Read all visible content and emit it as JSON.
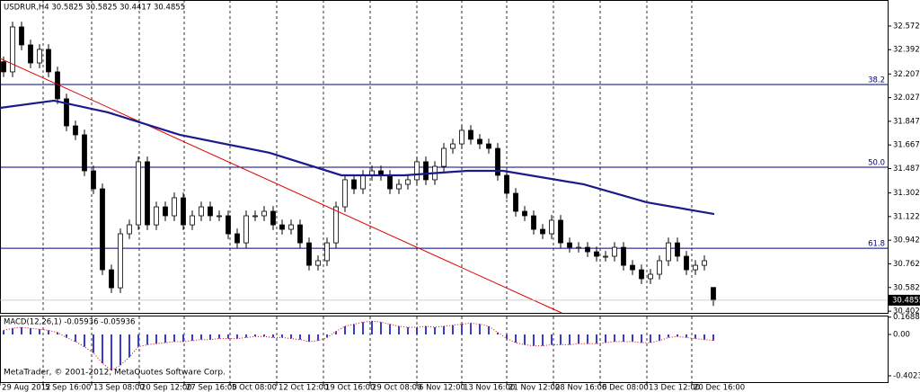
{
  "chart_data": [
    {
      "type": "candlestick",
      "title": "USDRUR,H4 30.5825 30.5825 30.4417 30.4855",
      "watermark": "MetaTrader, © 2001-2012, MetaQuotes Software Corp.",
      "up_color": "#ffffff",
      "down_color": "#000000",
      "edge_color": "#000000",
      "open": [
        32.3,
        32.223,
        32.565,
        32.428,
        32.291,
        32.394,
        32.223,
        32.018,
        31.812,
        31.744,
        31.47,
        31.333,
        30.717,
        30.58,
        30.991,
        31.059,
        31.539,
        31.059,
        31.196,
        31.128,
        31.265,
        31.059,
        31.128,
        31.196,
        31.128,
        31.128,
        30.991,
        30.922,
        31.128,
        31.128,
        31.162,
        31.059,
        31.025,
        31.059,
        30.922,
        30.751,
        30.786,
        30.922,
        31.196,
        31.402,
        31.333,
        31.436,
        31.47,
        31.436,
        31.333,
        31.367,
        31.402,
        31.539,
        31.402,
        31.504,
        31.641,
        31.675,
        31.778,
        31.71,
        31.675,
        31.641,
        31.436,
        31.299,
        31.162,
        31.128,
        31.025,
        30.991,
        31.094,
        30.922,
        30.888,
        30.888,
        30.854,
        30.82,
        30.82,
        30.888,
        30.751,
        30.717,
        30.649,
        30.683,
        30.786,
        30.922,
        30.82,
        30.717,
        30.751,
        30.5825
      ],
      "high": [
        32.34,
        32.605,
        32.605,
        32.468,
        32.434,
        32.434,
        32.263,
        32.058,
        31.852,
        31.784,
        31.51,
        31.373,
        30.757,
        31.031,
        31.099,
        31.579,
        31.579,
        31.236,
        31.236,
        31.305,
        31.305,
        31.168,
        31.236,
        31.236,
        31.168,
        31.168,
        31.031,
        31.168,
        31.168,
        31.202,
        31.202,
        31.099,
        31.099,
        31.099,
        30.962,
        30.826,
        30.962,
        31.236,
        31.442,
        31.442,
        31.476,
        31.51,
        31.51,
        31.476,
        31.407,
        31.442,
        31.579,
        31.579,
        31.544,
        31.681,
        31.715,
        31.818,
        31.818,
        31.75,
        31.715,
        31.681,
        31.476,
        31.339,
        31.202,
        31.168,
        31.065,
        31.134,
        31.134,
        30.962,
        30.928,
        30.928,
        30.894,
        30.86,
        30.928,
        30.928,
        30.791,
        30.757,
        30.723,
        30.826,
        30.962,
        30.962,
        30.86,
        30.791,
        30.826,
        30.5825
      ],
      "low": [
        32.183,
        32.183,
        32.388,
        32.251,
        32.251,
        32.183,
        31.978,
        31.772,
        31.704,
        31.43,
        31.293,
        30.677,
        30.54,
        30.54,
        30.951,
        31.019,
        31.019,
        31.019,
        31.088,
        31.088,
        31.019,
        31.019,
        31.088,
        31.088,
        31.088,
        30.951,
        30.882,
        30.882,
        31.088,
        31.088,
        31.019,
        30.985,
        30.985,
        30.882,
        30.711,
        30.711,
        30.746,
        30.882,
        31.156,
        31.293,
        31.293,
        31.396,
        31.396,
        31.293,
        31.293,
        31.327,
        31.362,
        31.362,
        31.362,
        31.464,
        31.601,
        31.635,
        31.67,
        31.635,
        31.601,
        31.396,
        31.259,
        31.122,
        31.088,
        30.985,
        30.951,
        30.951,
        30.882,
        30.848,
        30.848,
        30.814,
        30.78,
        30.78,
        30.78,
        30.711,
        30.677,
        30.609,
        30.609,
        30.643,
        30.746,
        30.78,
        30.677,
        30.677,
        30.711,
        30.4417
      ],
      "close": [
        32.223,
        32.565,
        32.428,
        32.291,
        32.394,
        32.223,
        32.018,
        31.812,
        31.744,
        31.47,
        31.333,
        30.717,
        30.58,
        30.991,
        31.059,
        31.539,
        31.059,
        31.196,
        31.128,
        31.265,
        31.059,
        31.128,
        31.196,
        31.128,
        31.128,
        30.991,
        30.922,
        31.128,
        31.128,
        31.162,
        31.059,
        31.025,
        31.059,
        30.922,
        30.751,
        30.786,
        30.922,
        31.196,
        31.402,
        31.333,
        31.436,
        31.47,
        31.436,
        31.333,
        31.367,
        31.402,
        31.539,
        31.402,
        31.504,
        31.641,
        31.675,
        31.778,
        31.71,
        31.675,
        31.641,
        31.436,
        31.299,
        31.162,
        31.128,
        31.025,
        30.991,
        31.094,
        30.922,
        30.888,
        30.888,
        30.854,
        30.82,
        30.82,
        30.888,
        30.751,
        30.717,
        30.649,
        30.683,
        30.786,
        30.922,
        30.82,
        30.717,
        30.751,
        30.786,
        30.4855
      ],
      "ma": {
        "color": "#1a1a8c",
        "x": [
          -0.4,
          5.6,
          11.6,
          19.6,
          29.6,
          37.6,
          44.6,
          51.6,
          55.6,
          64.6,
          71.6,
          79.1
        ],
        "values": [
          31.949,
          32.004,
          31.915,
          31.744,
          31.607,
          31.436,
          31.436,
          31.47,
          31.47,
          31.367,
          31.23,
          31.141
        ]
      },
      "trendline": {
        "color": "#e00000",
        "x": [
          -0.4,
          62.1
        ],
        "values": [
          32.326,
          30.389
        ]
      },
      "fib_color": "#000080",
      "fib_levels": [
        {
          "price": 32.127,
          "label": "38.2"
        },
        {
          "price": 31.497,
          "label": "50.0"
        },
        {
          "price": 30.881,
          "label": "61.8"
        }
      ],
      "xlim": [
        -0.4,
        98.4
      ],
      "ylim": [
        30.389,
        32.77
      ],
      "yticks": [
        {
          "value": 32.572,
          "label": "32.5720"
        },
        {
          "value": 32.392,
          "label": "32.3920"
        },
        {
          "value": 32.207,
          "label": "32.2070"
        },
        {
          "value": 32.027,
          "label": "32.0270"
        },
        {
          "value": 31.847,
          "label": "31.8470"
        },
        {
          "value": 31.667,
          "label": "31.6670"
        },
        {
          "value": 31.487,
          "label": "31.4870"
        },
        {
          "value": 31.302,
          "label": "31.3020"
        },
        {
          "value": 31.122,
          "label": "31.1220"
        },
        {
          "value": 30.942,
          "label": "30.9420"
        },
        {
          "value": 30.762,
          "label": "30.7620"
        },
        {
          "value": 30.582,
          "label": "30.5820"
        },
        {
          "value": 30.402,
          "label": "30.4020"
        }
      ],
      "xticks": [
        {
          "value": -0.4,
          "label": "29 Aug 2012"
        },
        {
          "value": 4.4,
          "label": "5 Sep 16:00"
        },
        {
          "value": 9.8,
          "label": "13 Sep 08:00"
        },
        {
          "value": 15.1,
          "label": "20 Sep 12:00"
        },
        {
          "value": 20.1,
          "label": "27 Sep 16:00"
        },
        {
          "value": 25.2,
          "label": "5 Oct 08:00"
        },
        {
          "value": 30.4,
          "label": "12 Oct 12:00"
        },
        {
          "value": 35.6,
          "label": "19 Oct 16:00"
        },
        {
          "value": 40.8,
          "label": "29 Oct 08:00"
        },
        {
          "value": 46,
          "label": "6 Nov 12:00"
        },
        {
          "value": 51,
          "label": "13 Nov 16:00"
        },
        {
          "value": 56,
          "label": "21 Nov 12:00"
        },
        {
          "value": 61.2,
          "label": "28 Nov 16:00"
        },
        {
          "value": 66.4,
          "label": "6 Dec 08:00"
        },
        {
          "value": 71.6,
          "label": "13 Dec 12:00"
        },
        {
          "value": 76.6,
          "label": "20 Dec 16:00"
        }
      ],
      "grid": true
    },
    {
      "type": "macd",
      "title": "MACD(12,26,1) -0.05936 -0.05936",
      "color": "#3c3ccc",
      "signal_color": "#cc0000",
      "values": [
        0.04,
        0.06,
        0.07,
        0.06,
        0.05,
        0.04,
        0.02,
        -0.03,
        -0.07,
        -0.12,
        -0.18,
        -0.28,
        -0.35,
        -0.3,
        -0.22,
        -0.12,
        -0.1,
        -0.09,
        -0.08,
        -0.07,
        -0.07,
        -0.06,
        -0.05,
        -0.05,
        -0.04,
        -0.04,
        -0.04,
        -0.03,
        -0.02,
        -0.02,
        -0.03,
        -0.03,
        -0.04,
        -0.05,
        -0.07,
        -0.06,
        -0.03,
        0.03,
        0.08,
        0.1,
        0.12,
        0.13,
        0.12,
        0.1,
        0.08,
        0.07,
        0.07,
        0.08,
        0.07,
        0.08,
        0.09,
        0.1,
        0.11,
        0.1,
        0.08,
        0.02,
        -0.04,
        -0.08,
        -0.1,
        -0.11,
        -0.11,
        -0.1,
        -0.1,
        -0.1,
        -0.09,
        -0.09,
        -0.09,
        -0.08,
        -0.07,
        -0.07,
        -0.07,
        -0.08,
        -0.08,
        -0.06,
        -0.03,
        -0.02,
        -0.03,
        -0.04,
        -0.05,
        -0.05936
      ],
      "ylim": [
        -0.455,
        0.175
      ],
      "yticks": [
        0.16887,
        {
          "value": 0,
          "label": "0.00"
        },
        -0.40231
      ]
    }
  ]
}
